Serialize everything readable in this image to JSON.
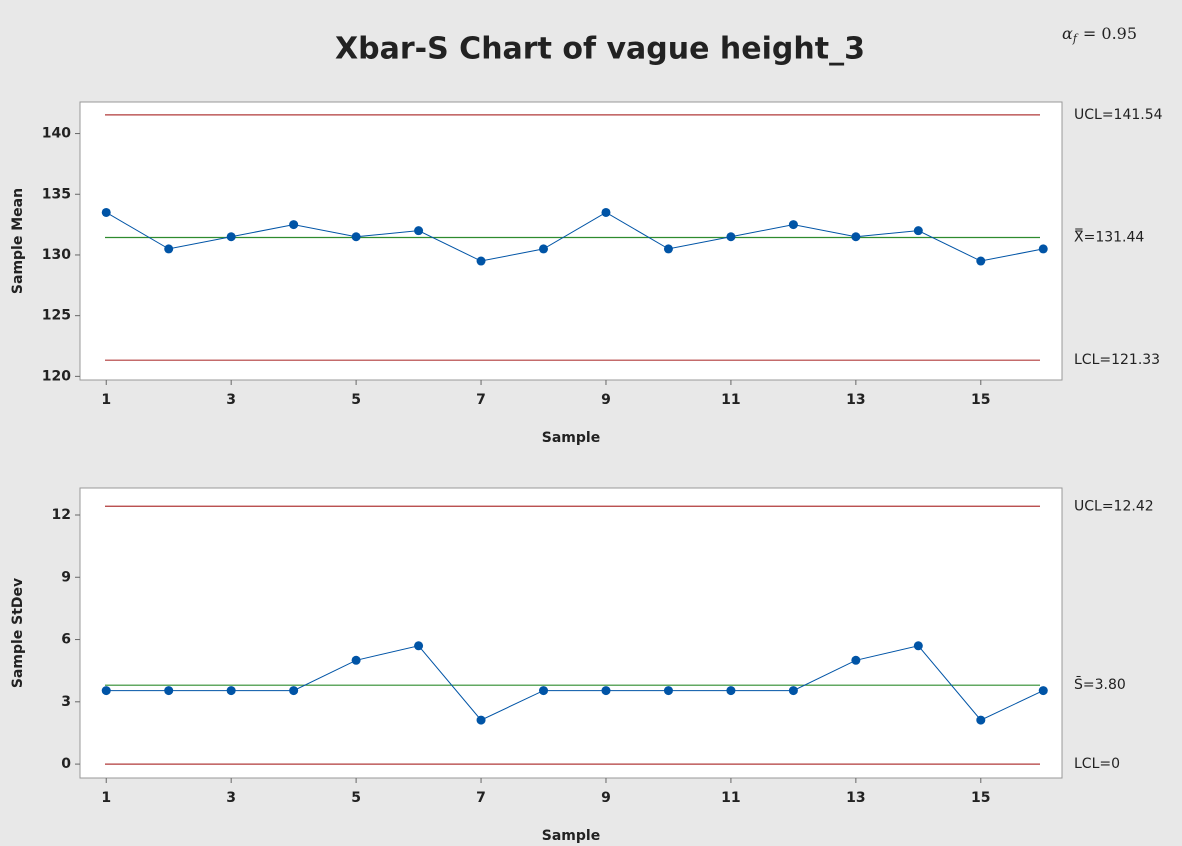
{
  "chart_data": [
    {
      "type": "line",
      "title": "Xbar-S Chart of vague height_3",
      "annotation": {
        "symbol": "α",
        "subscript": "f",
        "text": "= 0.95"
      },
      "xlabel": "Sample",
      "ylabel": "Sample Mean",
      "x": [
        1,
        2,
        3,
        4,
        5,
        6,
        7,
        8,
        9,
        10,
        11,
        12,
        13,
        14,
        15,
        16
      ],
      "values": [
        133.5,
        130.5,
        131.5,
        132.5,
        131.5,
        132,
        129.5,
        130.5,
        133.5,
        130.5,
        131.5,
        132.5,
        131.5,
        132,
        129.5,
        130.5
      ],
      "color": "#0054a6",
      "xlim": [
        0.58,
        16.3
      ],
      "xticks": [
        1,
        3,
        5,
        7,
        9,
        11,
        13,
        15
      ],
      "ylim": [
        119.7,
        142.6
      ],
      "yticks": [
        120,
        125,
        130,
        135,
        140
      ],
      "control_limits": [
        {
          "label": "UCL=141.54",
          "value": 141.54,
          "color": "#b03a3a"
        },
        {
          "label": "X̿=131.44",
          "value": 131.44,
          "color": "#2e8b2e"
        },
        {
          "label": "LCL=121.33",
          "value": 121.33,
          "color": "#b03a3a"
        }
      ]
    },
    {
      "type": "line",
      "xlabel": "Sample",
      "ylabel": "Sample StDev",
      "x": [
        1,
        2,
        3,
        4,
        5,
        6,
        7,
        8,
        9,
        10,
        11,
        12,
        13,
        14,
        15,
        16
      ],
      "values": [
        3.54,
        3.54,
        3.54,
        3.54,
        5.0,
        5.7,
        2.12,
        3.54,
        3.54,
        3.54,
        3.54,
        3.54,
        5.0,
        5.7,
        2.12,
        3.54
      ],
      "color": "#0054a6",
      "xlim": [
        0.58,
        16.3
      ],
      "xticks": [
        1,
        3,
        5,
        7,
        9,
        11,
        13,
        15
      ],
      "ylim": [
        -0.67,
        13.3
      ],
      "yticks": [
        0,
        3,
        6,
        9,
        12
      ],
      "control_limits": [
        {
          "label": "UCL=12.42",
          "value": 12.42,
          "color": "#b03a3a"
        },
        {
          "label": "S̄=3.80",
          "value": 3.8,
          "color": "#2e8b2e"
        },
        {
          "label": "LCL=0",
          "value": 0,
          "color": "#b03a3a"
        }
      ]
    }
  ]
}
